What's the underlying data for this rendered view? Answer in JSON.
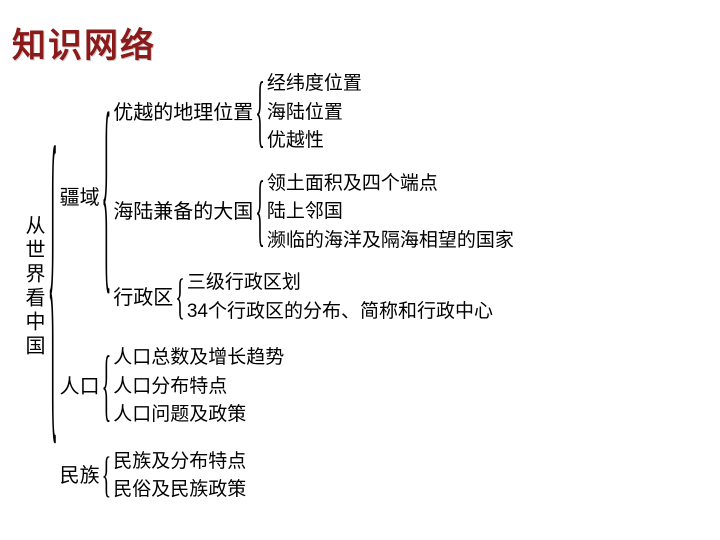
{
  "title": "知识网络",
  "colors": {
    "title_color": "#8b1a1a",
    "title_shadow": "#cccccc",
    "text_color": "#000000",
    "background": "#ffffff"
  },
  "typography": {
    "title_fontsize": 34,
    "label_fontsize": 20,
    "leaf_fontsize": 19
  },
  "tree": {
    "root": "从世界看中国",
    "children": [
      {
        "label": "疆域",
        "children": [
          {
            "label": "优越的地理位置",
            "leaves": [
              "经纬度位置",
              "海陆位置",
              "优越性"
            ]
          },
          {
            "label": "海陆兼备的大国",
            "leaves": [
              "领土面积及四个端点",
              "陆上邻国",
              "濒临的海洋及隔海相望的国家"
            ]
          },
          {
            "label": "行政区",
            "leaves": [
              "三级行政区划",
              "34个行政区的分布、简称和行政中心"
            ]
          }
        ]
      },
      {
        "label": "人口",
        "leaves": [
          "人口总数及增长趋势",
          "人口分布特点",
          "人口问题及政策"
        ]
      },
      {
        "label": "民族",
        "leaves": [
          "民族及分布特点",
          "民俗及民族政策"
        ]
      }
    ]
  }
}
